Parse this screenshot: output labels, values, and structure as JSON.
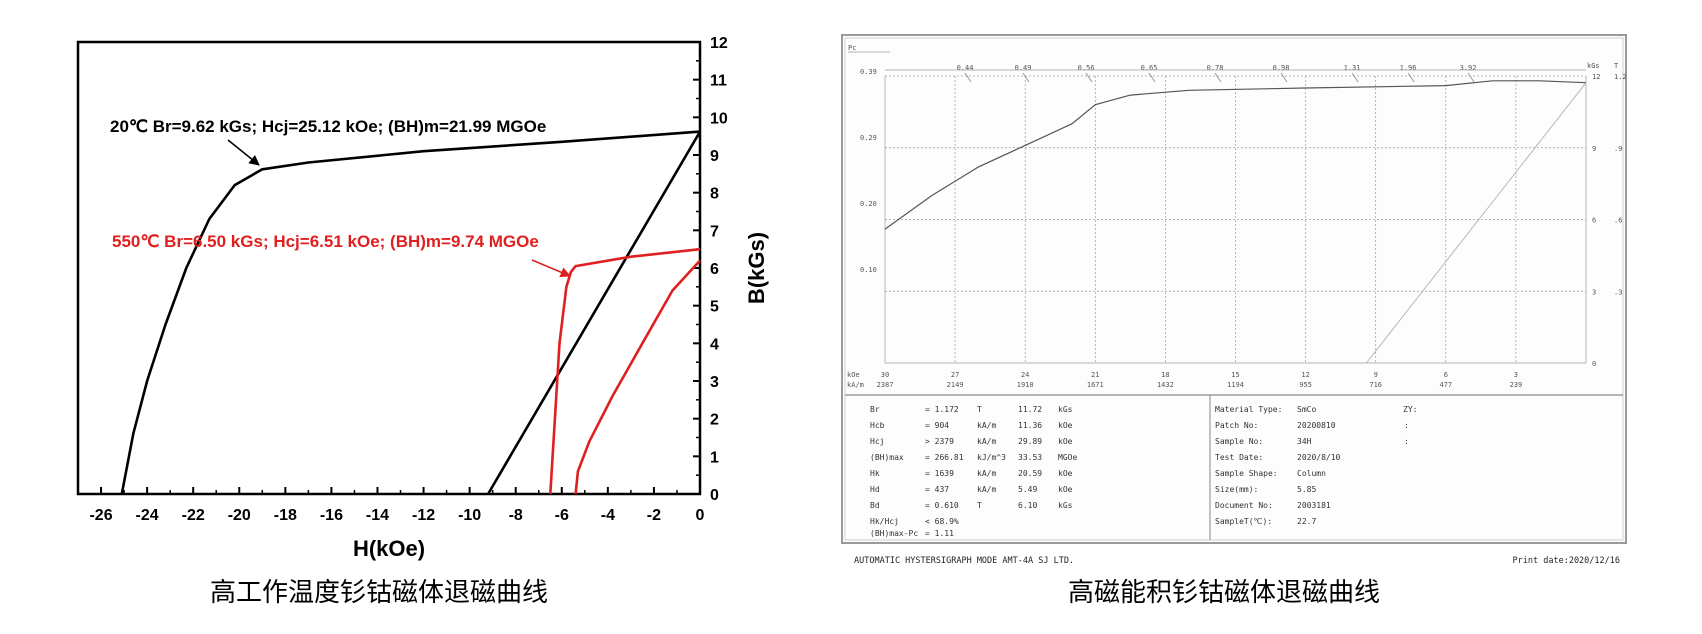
{
  "left": {
    "caption": "高工作温度钐钴磁体退磁曲线",
    "chart_data": {
      "type": "line",
      "xlabel": "H(kOe)",
      "ylabel": "B(kGs)",
      "xlim": [
        -27,
        0
      ],
      "ylim": [
        0,
        12
      ],
      "x_ticks": [
        "-26",
        "-24",
        "-22",
        "-20",
        "-18",
        "-16",
        "-14",
        "-12",
        "-10",
        "-8",
        "-6",
        "-4",
        "-2",
        "0"
      ],
      "y_ticks": [
        "0",
        "1",
        "2",
        "3",
        "4",
        "5",
        "6",
        "7",
        "8",
        "9",
        "10",
        "11",
        "12"
      ],
      "grid": false,
      "annotations": [
        {
          "text": "20℃  Br=9.62 kGs; Hcj=25.12 kOe; (BH)m=21.99 MGOe",
          "color": "#000000"
        },
        {
          "text": "550℃  Br=6.50 kGs; Hcj=6.51 kOe; (BH)m=9.74 MGOe",
          "color": "#e02020"
        }
      ],
      "series": [
        {
          "color": "#000000",
          "points": [
            [
              -25.1,
              0
            ],
            [
              -24.6,
              1.6
            ],
            [
              -24,
              3
            ],
            [
              -23.2,
              4.5
            ],
            [
              -22.3,
              6
            ],
            [
              -21.3,
              7.3
            ],
            [
              -20.2,
              8.2
            ],
            [
              -19,
              8.62
            ],
            [
              -17,
              8.8
            ],
            [
              -12,
              9.1
            ],
            [
              -6,
              9.35
            ],
            [
              0,
              9.62
            ]
          ]
        },
        {
          "color": "#000000",
          "points": [
            [
              -9.2,
              0
            ],
            [
              0,
              9.62
            ]
          ]
        },
        {
          "color": "#e02020",
          "points": [
            [
              -6.5,
              0
            ],
            [
              -6.3,
              2
            ],
            [
              -6.1,
              4
            ],
            [
              -5.8,
              5.5
            ],
            [
              -5.6,
              5.9
            ],
            [
              -5.4,
              6.05
            ],
            [
              -3,
              6.3
            ],
            [
              0,
              6.5
            ]
          ]
        },
        {
          "color": "#e02020",
          "points": [
            [
              -5.4,
              0
            ],
            [
              -5.3,
              0.6
            ],
            [
              -4.8,
              1.4
            ],
            [
              -3.8,
              2.6
            ],
            [
              -2.5,
              4
            ],
            [
              -1.2,
              5.4
            ],
            [
              0,
              6.2
            ]
          ]
        }
      ]
    }
  },
  "right": {
    "caption": "高磁能积钐钴磁体退磁曲线",
    "chart_data": {
      "type": "line",
      "ylabel": "Pc",
      "top_ticks": [
        "0.44",
        "0.49",
        "0.56",
        "0.65",
        "0.78",
        "0.98",
        "1.31",
        "1.96",
        "3.92"
      ],
      "left_ticks": [
        "0.39",
        "0.29",
        "0.20",
        "0.10"
      ],
      "right_labels": {
        "units": [
          "kGs",
          "T"
        ],
        "rows": [
          [
            "12",
            "1.2"
          ],
          [
            "9",
            ".9"
          ],
          [
            "6",
            ".6"
          ],
          [
            "3",
            ".3"
          ],
          [
            "0",
            ""
          ]
        ]
      },
      "x_units": [
        "kOe",
        "kA/m"
      ],
      "x_koe": [
        "30",
        "27",
        "24",
        "21",
        "18",
        "15",
        "12",
        "9",
        "6",
        "3"
      ],
      "x_kam": [
        "2387",
        "2149",
        "1910",
        "1671",
        "1432",
        "1194",
        "955",
        "716",
        "477",
        "239"
      ],
      "grid": true,
      "series": [
        {
          "name": "B",
          "color": "#555555",
          "points": [
            [
              30,
              5.6
            ],
            [
              28,
              7.0
            ],
            [
              26,
              8.2
            ],
            [
              24,
              9.1
            ],
            [
              22,
              10.0
            ],
            [
              21,
              10.8
            ],
            [
              19.5,
              11.2
            ],
            [
              17,
              11.4
            ],
            [
              12,
              11.5
            ],
            [
              6,
              11.6
            ],
            [
              4,
              11.8
            ],
            [
              2,
              11.8
            ],
            [
              0,
              11.72
            ]
          ]
        },
        {
          "name": "load",
          "color": "#b0b0b0",
          "points": [
            [
              9.4,
              0
            ],
            [
              0,
              11.72
            ]
          ]
        }
      ]
    },
    "table_left": [
      [
        "Br",
        "= 1.172",
        "T",
        "11.72",
        "kGs"
      ],
      [
        "Hcb",
        "= 904",
        "kA/m",
        "11.36",
        "kOe"
      ],
      [
        "Hcj",
        "> 2379",
        "kA/m",
        "29.89",
        "kOe"
      ],
      [
        "(BH)max",
        "= 266.81",
        "kJ/m^3",
        "33.53",
        "MGOe"
      ],
      [
        "Hk",
        "= 1639",
        "kA/m",
        "20.59",
        "kOe"
      ],
      [
        "Hd",
        "= 437",
        "kA/m",
        "5.49",
        "kOe"
      ],
      [
        "Bd",
        "= 0.610",
        "T",
        "6.10",
        "kGs"
      ],
      [
        "Hk/Hcj",
        "< 68.9%",
        "",
        "",
        ""
      ],
      [
        "(BH)max-Pc",
        "= 1.11",
        "",
        "",
        ""
      ]
    ],
    "table_right": [
      [
        "Material Type:",
        "SmCo"
      ],
      [
        "Patch No:",
        "20200810"
      ],
      [
        "Sample No:",
        "34H"
      ],
      [
        "Test Date:",
        "2020/8/10"
      ],
      [
        "Sample Shape:",
        "Column"
      ],
      [
        "Size(mm):",
        "5.85"
      ],
      [
        "Document No:",
        "2003181"
      ],
      [
        "SampleT(℃):",
        "22.7"
      ]
    ],
    "zy": {
      "label": "ZY:",
      "marks": [
        ":",
        ":"
      ]
    },
    "footer_left": "AUTOMATIC  HYSTERSIGRAPH  MODE  AMT-4A      SJ  LTD.",
    "footer_right": "Print date:2020/12/16"
  }
}
